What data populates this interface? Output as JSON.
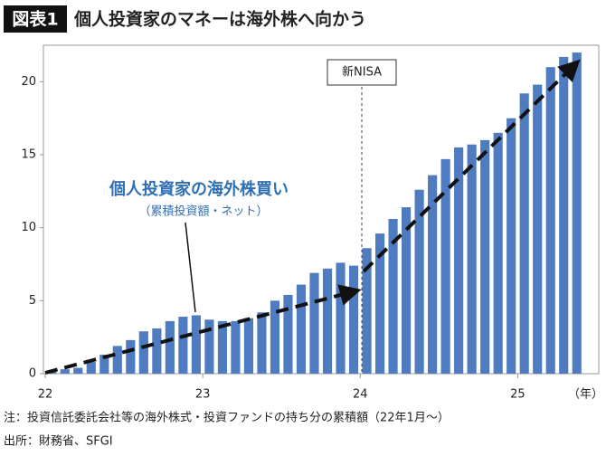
{
  "chart_data": {
    "type": "bar",
    "tag": "図表1",
    "title": "個人投資家のマネーは海外株へ向かう",
    "annotation": "個人投資家の海外株買い",
    "annotation_sub": "（累積投資額・ネット）",
    "marker_label": "新NISA",
    "x_label": "（年）",
    "note": "注：投資信託委託会社等の海外株式・投資ファンドの持ち分の累積額（22年1月～）",
    "source": "出所：財務省、SFGI",
    "color": "#4f7cc0",
    "categories": [
      "22",
      null,
      null,
      null,
      null,
      null,
      null,
      null,
      null,
      null,
      null,
      null,
      "23",
      null,
      null,
      null,
      null,
      null,
      null,
      null,
      null,
      null,
      null,
      null,
      "24",
      null,
      null,
      null,
      null,
      null,
      null,
      null,
      null,
      null,
      null,
      null,
      "25",
      null,
      null,
      null,
      null
    ],
    "values": [
      0.2,
      0.3,
      0.4,
      0.8,
      1.3,
      1.9,
      2.3,
      2.9,
      3.1,
      3.6,
      3.9,
      4.0,
      3.7,
      3.6,
      3.6,
      3.8,
      4.2,
      5.0,
      5.4,
      6.1,
      6.9,
      7.2,
      7.6,
      7.4,
      8.6,
      9.6,
      10.6,
      11.4,
      12.6,
      13.6,
      14.7,
      15.5,
      15.7,
      16.0,
      16.5,
      17.5,
      19.2,
      19.8,
      21.0,
      21.7,
      22.0
    ],
    "ylim": [
      0,
      22.5
    ],
    "yticks": [
      0,
      5,
      10,
      15,
      20
    ]
  }
}
